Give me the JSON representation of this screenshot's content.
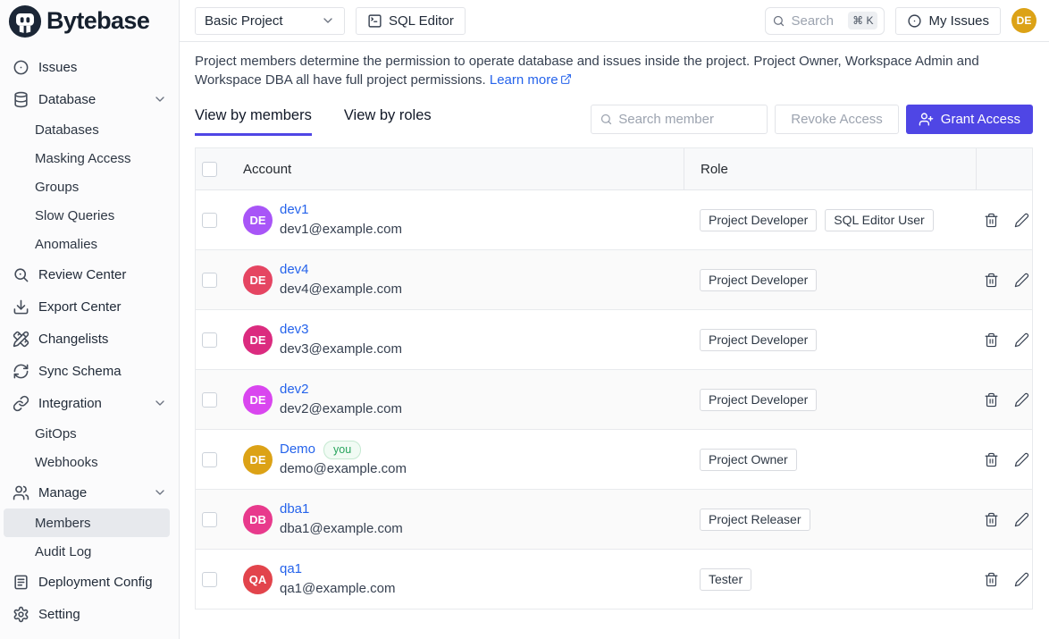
{
  "brand": {
    "name": "Bytebase"
  },
  "topbar": {
    "project_select": "Basic Project",
    "sql_editor_label": "SQL Editor",
    "search_placeholder": "Search",
    "search_shortcut": "⌘ K",
    "my_issues_label": "My Issues",
    "avatar_initials": "DE",
    "avatar_color": "#dca216"
  },
  "sidebar": {
    "items": [
      {
        "label": "Issues",
        "icon": "circle-dot",
        "indent": false,
        "expandable": false,
        "active": false
      },
      {
        "label": "Database",
        "icon": "database",
        "indent": false,
        "expandable": true,
        "active": false
      },
      {
        "label": "Databases",
        "indent": true,
        "active": false
      },
      {
        "label": "Masking Access",
        "indent": true,
        "active": false
      },
      {
        "label": "Groups",
        "indent": true,
        "active": false
      },
      {
        "label": "Slow Queries",
        "indent": true,
        "active": false
      },
      {
        "label": "Anomalies",
        "indent": true,
        "active": false
      },
      {
        "label": "Review Center",
        "icon": "scan-search",
        "indent": false,
        "expandable": false,
        "active": false
      },
      {
        "label": "Export Center",
        "icon": "download",
        "indent": false,
        "expandable": false,
        "active": false
      },
      {
        "label": "Changelists",
        "icon": "pencil-ruler",
        "indent": false,
        "expandable": false,
        "active": false
      },
      {
        "label": "Sync Schema",
        "icon": "refresh",
        "indent": false,
        "expandable": false,
        "active": false
      },
      {
        "label": "Integration",
        "icon": "link",
        "indent": false,
        "expandable": true,
        "active": false
      },
      {
        "label": "GitOps",
        "indent": true,
        "active": false
      },
      {
        "label": "Webhooks",
        "indent": true,
        "active": false
      },
      {
        "label": "Manage",
        "icon": "users",
        "indent": false,
        "expandable": true,
        "active": false
      },
      {
        "label": "Members",
        "indent": true,
        "active": true
      },
      {
        "label": "Audit Log",
        "indent": true,
        "active": false
      },
      {
        "label": "Deployment Config",
        "icon": "file-lines",
        "indent": false,
        "expandable": false,
        "active": false
      },
      {
        "label": "Setting",
        "icon": "gear",
        "indent": false,
        "expandable": false,
        "active": false
      }
    ]
  },
  "main": {
    "description": "Project members determine the permission to operate database and issues inside the project. Project Owner, Workspace Admin and Workspace DBA all have full project permissions.",
    "learn_more_label": "Learn more",
    "tabs": [
      {
        "label": "View by members",
        "active": true
      },
      {
        "label": "View by roles",
        "active": false
      }
    ],
    "controls": {
      "search_member_placeholder": "Search member",
      "revoke_label": "Revoke Access",
      "grant_label": "Grant Access"
    },
    "table": {
      "columns": [
        "Account",
        "Role"
      ],
      "you_badge": "you",
      "rows": [
        {
          "name": "dev1",
          "email": "dev1@example.com",
          "initials": "DE",
          "avatar_color": "#a855f7",
          "you": false,
          "roles": [
            "Project Developer",
            "SQL Editor User"
          ]
        },
        {
          "name": "dev4",
          "email": "dev4@example.com",
          "initials": "DE",
          "avatar_color": "#e54562",
          "you": false,
          "roles": [
            "Project Developer"
          ]
        },
        {
          "name": "dev3",
          "email": "dev3@example.com",
          "initials": "DE",
          "avatar_color": "#db2b7f",
          "you": false,
          "roles": [
            "Project Developer"
          ]
        },
        {
          "name": "dev2",
          "email": "dev2@example.com",
          "initials": "DE",
          "avatar_color": "#d946ef",
          "you": false,
          "roles": [
            "Project Developer"
          ]
        },
        {
          "name": "Demo",
          "email": "demo@example.com",
          "initials": "DE",
          "avatar_color": "#dca216",
          "you": true,
          "roles": [
            "Project Owner"
          ]
        },
        {
          "name": "dba1",
          "email": "dba1@example.com",
          "initials": "DB",
          "avatar_color": "#e83a8c",
          "you": false,
          "roles": [
            "Project Releaser"
          ]
        },
        {
          "name": "qa1",
          "email": "qa1@example.com",
          "initials": "QA",
          "avatar_color": "#e2444c",
          "you": false,
          "roles": [
            "Tester"
          ]
        }
      ]
    }
  },
  "colors": {
    "accent": "#4f46e5",
    "link": "#2563eb",
    "tab_underline": "#4f46e5"
  }
}
